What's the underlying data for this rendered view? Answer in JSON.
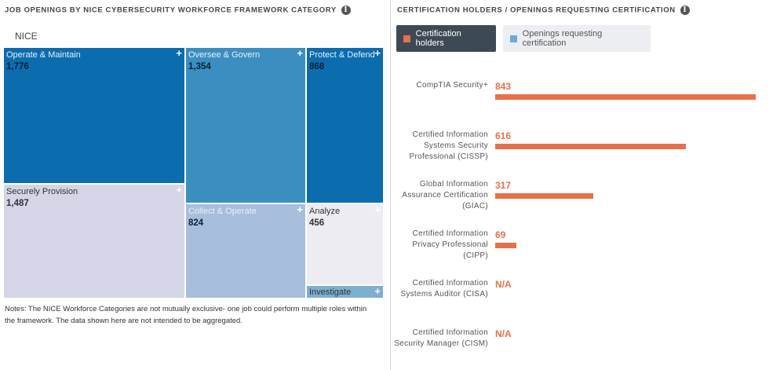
{
  "left_panel": {
    "title": "JOB OPENINGS BY NICE CYBERSECURITY WORKFORCE FRAMEWORK CATEGORY",
    "info_icon": "info-icon",
    "root_label": "NICE",
    "notes": "Notes: The NICE Workforce Categories are not mutually exclusive- one job could perform multiple roles within the framework. The data shown here are not intended to be aggregated."
  },
  "right_panel": {
    "title": "CERTIFICATION HOLDERS / OPENINGS REQUESTING CERTIFICATION",
    "info_icon": "info-icon",
    "legend": {
      "active": {
        "label": "Certification holders",
        "color": "#e8704a"
      },
      "inactive": {
        "label": "Openings requesting certification",
        "color": "#6fa8d6"
      }
    }
  },
  "colors": {
    "dark_blue": "#0b6cae",
    "mid_blue": "#3a8fc0",
    "light_blue": "#a7bedc",
    "lavender": "#d4d6e8",
    "pale": "#ececf2",
    "small_blue": "#7eaed0",
    "bar": "#e8704a"
  },
  "chart_data": [
    {
      "type": "treemap",
      "title": "JOB OPENINGS BY NICE CYBERSECURITY WORKFORCE FRAMEWORK CATEGORY",
      "root": "NICE",
      "categories": [
        "Operate & Maintain",
        "Securely Provision",
        "Oversee & Govern",
        "Collect & Operate",
        "Protect & Defend",
        "Analyze",
        "Investigate"
      ],
      "values": [
        1776,
        1487,
        1354,
        824,
        868,
        456,
        null
      ],
      "value_labels": [
        "1,776",
        "1,487",
        "1,354",
        "824",
        "868",
        "456",
        ""
      ]
    },
    {
      "type": "bar",
      "orientation": "horizontal",
      "title": "CERTIFICATION HOLDERS / OPENINGS REQUESTING CERTIFICATION",
      "categories": [
        "CompTIA Security+",
        "Certified Information Systems Security Professional (CISSP)",
        "Global Information Assurance Certification (GIAC)",
        "Certified Information Privacy Professional (CIPP)",
        "Certified Information Systems Auditor (CISA)",
        "Certified Information Security Manager (CISM)"
      ],
      "series": [
        {
          "name": "Certification holders",
          "values": [
            843,
            616,
            317,
            69,
            null,
            null
          ]
        }
      ],
      "value_labels": [
        "843",
        "616",
        "317",
        "69",
        "N/A",
        "N/A"
      ]
    }
  ]
}
